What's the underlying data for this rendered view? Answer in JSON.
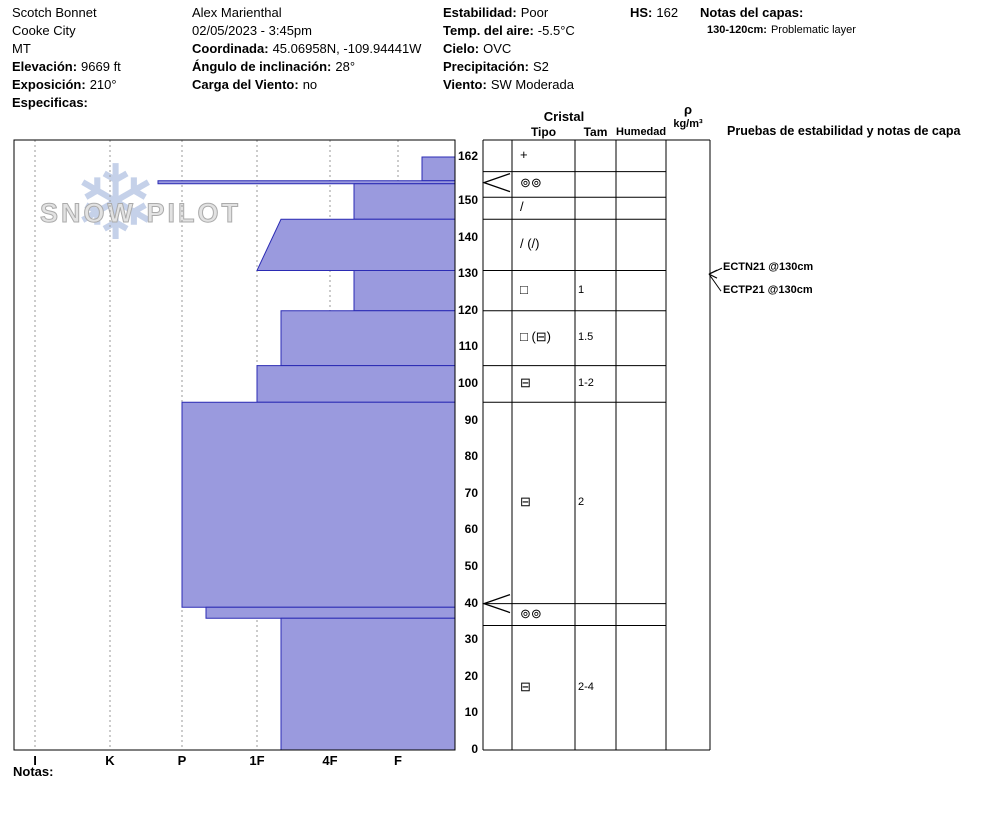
{
  "header": {
    "col1": {
      "line1": "Scotch Bonnet",
      "line2": "Cooke City",
      "line3": "MT",
      "elev_label": "Elevación:",
      "elev": "9669 ft",
      "exp_label": "Exposición:",
      "exp": "210°",
      "spec_label": "Especificas:"
    },
    "col2": {
      "observer": "Alex Marienthal",
      "datetime": "02/05/2023 - 3:45pm",
      "coord_label": "Coordinada:",
      "coord": "45.06958N, -109.94441W",
      "angle_label": "Ángulo de inclinación:",
      "angle": "28°",
      "windload_label": "Carga del Viento:",
      "windload": "no"
    },
    "col3": {
      "stab_label": "Estabilidad:",
      "stab": "Poor",
      "temp_label": "Temp. del aire:",
      "temp": "-5.5°C",
      "sky_label": "Cielo:",
      "sky": "OVC",
      "precip_label": "Precipitación:",
      "precip": "S2",
      "wind_label": "Viento:",
      "wind": "SW Moderada"
    },
    "hs_label": "HS:",
    "hs": "162",
    "notes_label": "Notas del capas:",
    "note_range": "130-120cm:",
    "note_text": "Problematic layer"
  },
  "watermark": {
    "text": "SNOW PILOT",
    "flake": "❄"
  },
  "table_header": {
    "cristal": "Cristal",
    "tipo": "Tipo",
    "tam": "Tam",
    "humedad": "Humedad",
    "rho": "ρ",
    "rho_units": "kg/m³",
    "pruebas": "Pruebas de estabilidad y notas de capa"
  },
  "chart_data": {
    "type": "bar",
    "orientation": "horizontal-snow-profile",
    "ylim": [
      0,
      162
    ],
    "y_ticks": [
      162,
      150,
      140,
      130,
      120,
      110,
      100,
      90,
      80,
      70,
      60,
      50,
      40,
      30,
      20,
      10,
      0
    ],
    "hardness_categories": [
      "I",
      "K",
      "P",
      "1F",
      "4F",
      "F"
    ],
    "bar_fill": "#9a9ade",
    "bar_stroke": "#2b2bb4",
    "layers": [
      {
        "top": 162,
        "bottom": 155.5,
        "hardness": "F-"
      },
      {
        "top": 155.5,
        "bottom": 154.7,
        "hardness": "P+"
      },
      {
        "top": 154.7,
        "bottom": 145,
        "hardness": "4F-"
      },
      {
        "top": 145,
        "bottom": 131,
        "hardness_top": "1F-",
        "hardness": "1F"
      },
      {
        "top": 131,
        "bottom": 120,
        "hardness": "4F-"
      },
      {
        "top": 120,
        "bottom": 105,
        "hardness": "1F-"
      },
      {
        "top": 105,
        "bottom": 95,
        "hardness": "1F"
      },
      {
        "top": 95,
        "bottom": 39,
        "hardness": "P"
      },
      {
        "top": 39,
        "bottom": 36,
        "hardness": "P-"
      },
      {
        "top": 36,
        "bottom": 0,
        "hardness": "1F-"
      }
    ],
    "grains": [
      {
        "top": 162,
        "bottom": 158,
        "tipo": "+",
        "tam": ""
      },
      {
        "top": 158,
        "bottom": 151,
        "tipo": "⊚⊚",
        "tam": ""
      },
      {
        "top": 151,
        "bottom": 145,
        "tipo": "/",
        "tam": ""
      },
      {
        "top": 145,
        "bottom": 131,
        "tipo": "/ (/)",
        "tam": ""
      },
      {
        "top": 131,
        "bottom": 120,
        "tipo": "□",
        "tam": "1"
      },
      {
        "top": 120,
        "bottom": 105,
        "tipo": "□ (⊟)",
        "tam": "1.5"
      },
      {
        "top": 105,
        "bottom": 95,
        "tipo": "⊟",
        "tam": "1-2"
      },
      {
        "top": 95,
        "bottom": 40,
        "tipo": "⊟",
        "tam": "2"
      },
      {
        "top": 40,
        "bottom": 34,
        "tipo": "⊚⊚",
        "tam": ""
      },
      {
        "top": 34,
        "bottom": 0,
        "tipo": "⊟",
        "tam": "2-4"
      }
    ],
    "tests": [
      {
        "label": "ECTN21 @130cm",
        "depth": 130
      },
      {
        "label": "ECTP21 @130cm",
        "depth": 130
      }
    ],
    "flagged_layers": [
      155,
      40
    ]
  },
  "footer": {
    "notas": "Notas:"
  }
}
